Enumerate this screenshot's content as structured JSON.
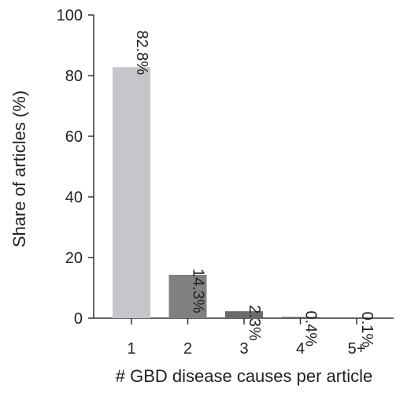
{
  "chart_data": {
    "type": "bar",
    "categories": [
      "1",
      "2",
      "3",
      "4",
      "5+"
    ],
    "values": [
      82.8,
      14.3,
      2.3,
      0.4,
      0.1
    ],
    "data_labels": [
      "82.8%",
      "14.3%",
      "2.3%",
      "0.4%",
      "0.1%"
    ],
    "bar_colors": [
      "#c6c5ca",
      "#808080",
      "#6b6b6b",
      "#5c5c5c",
      "#5c5c5c"
    ],
    "xlabel": "# GBD disease causes per article",
    "ylabel": "Share of articles (%)",
    "ylim": [
      0,
      100
    ],
    "yticks": [
      0,
      20,
      40,
      60,
      80,
      100
    ],
    "grid": false,
    "legend": "none"
  }
}
